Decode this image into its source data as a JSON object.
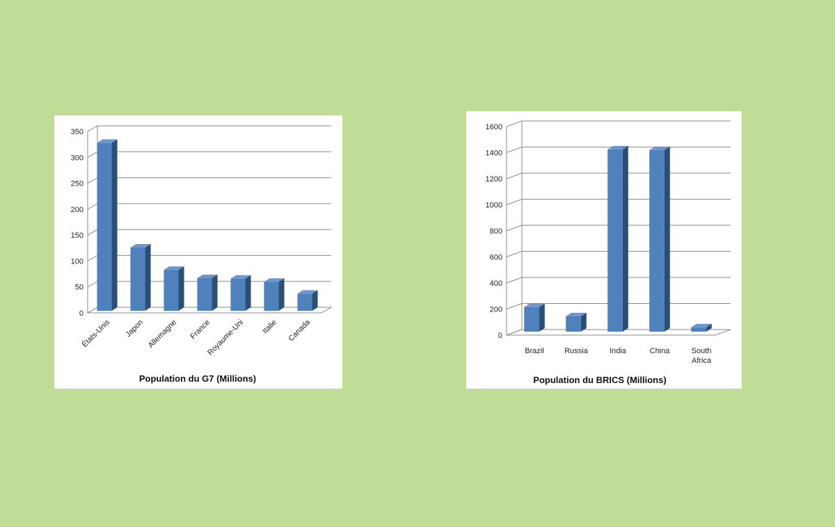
{
  "colors": {
    "background": "#c1dc97",
    "bar_front": "#4f81bd",
    "bar_side": "#2c4d75",
    "bar_top": "#6d96cf",
    "grid": "#888888"
  },
  "chart_data": [
    {
      "id": "g7",
      "type": "bar",
      "title": "Population du G7 (Millions)",
      "xlabel": "",
      "ylabel": "",
      "categories": [
        "États-Unis",
        "Japon",
        "Allemagne",
        "France",
        "Royaume-Uni",
        "Italie",
        "Canada"
      ],
      "values": [
        328,
        126,
        83,
        67,
        66,
        60,
        37
      ],
      "ylim": [
        0,
        350
      ],
      "yticks": [
        0,
        50,
        100,
        150,
        200,
        250,
        300,
        350
      ],
      "grid": true,
      "legend": "none"
    },
    {
      "id": "brics",
      "type": "bar",
      "title": "Population  du BRICS (Millions)",
      "xlabel": "",
      "ylabel": "",
      "categories": [
        "Brazil",
        "Russia",
        "India",
        "China",
        "South Africa"
      ],
      "values": [
        215,
        145,
        1425,
        1420,
        60
      ],
      "ylim": [
        0,
        1600
      ],
      "yticks": [
        0,
        200,
        400,
        600,
        800,
        1000,
        1200,
        1400,
        1600
      ],
      "grid": true,
      "legend": "none"
    }
  ]
}
